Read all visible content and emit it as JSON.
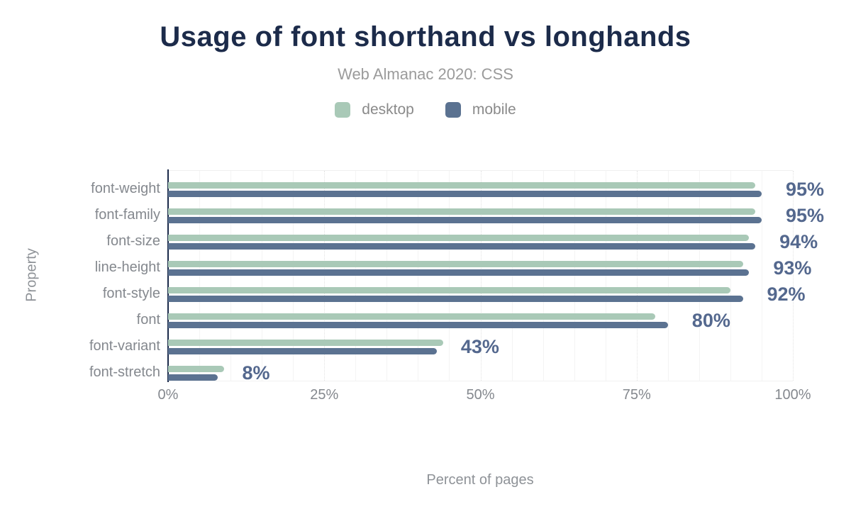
{
  "figure": {
    "title": "Usage of font shorthand vs longhands",
    "subtitle": "Web Almanac 2020: CSS"
  },
  "axes": {
    "y_title": "Property",
    "x_title": "Percent of pages"
  },
  "colors": {
    "title": "#1c2b4a",
    "axis_line": "#1b2a4a",
    "desktop": "#a9c9b7",
    "mobile": "#5b7291",
    "value_label": "#54688e",
    "muted_text": "#84888e"
  },
  "chart_data": {
    "type": "bar",
    "orientation": "horizontal",
    "title": "Usage of font shorthand vs longhands",
    "subtitle": "Web Almanac 2020: CSS",
    "categories": [
      "font-weight",
      "font-family",
      "font-size",
      "line-height",
      "font-style",
      "font",
      "font-variant",
      "font-stretch"
    ],
    "series": [
      {
        "name": "desktop",
        "color": "#a9c9b7",
        "values": [
          94,
          94,
          93,
          92,
          90,
          78,
          44,
          9
        ]
      },
      {
        "name": "mobile",
        "color": "#5b7291",
        "values": [
          95,
          95,
          94,
          93,
          92,
          80,
          43,
          8
        ]
      }
    ],
    "data_labels": [
      "95%",
      "95%",
      "94%",
      "93%",
      "92%",
      "80%",
      "43%",
      "8%"
    ],
    "data_labels_source": "mobile",
    "xlabel": "Percent of pages",
    "ylabel": "Property",
    "xlim": [
      0,
      100
    ],
    "x_ticks": [
      "0%",
      "25%",
      "50%",
      "75%",
      "100%"
    ],
    "x_tick_positions": [
      0,
      25,
      50,
      75,
      100
    ],
    "grid": "vertical minor every 5%, dotted major every 25%",
    "legend_position": "top"
  },
  "legend": {
    "items": [
      {
        "label": "desktop",
        "color": "#a9c9b7"
      },
      {
        "label": "mobile",
        "color": "#5b7291"
      }
    ]
  }
}
